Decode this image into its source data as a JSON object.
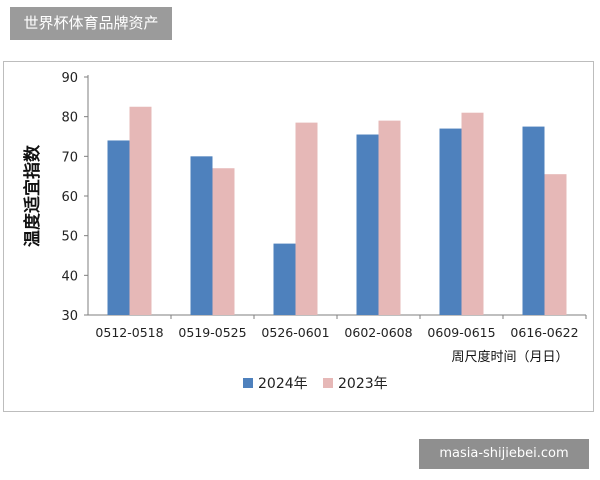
{
  "header": {
    "badge": "世界杯体育品牌资产"
  },
  "footer": {
    "watermark": "masia-shijiebei.com"
  },
  "chart_data": {
    "type": "bar",
    "title": "",
    "xlabel": "周尺度时间（月日）",
    "ylabel": "温度适宜指数",
    "ylim": [
      30,
      90
    ],
    "yticks": [
      30,
      40,
      50,
      60,
      70,
      80,
      90
    ],
    "grid": false,
    "legend_position": "bottom-center",
    "categories": [
      "0512-0518",
      "0519-0525",
      "0526-0601",
      "0602-0608",
      "0609-0615",
      "0616-0622"
    ],
    "series": [
      {
        "name": "2024年",
        "color": "#4e81bd",
        "values": [
          74,
          70,
          48,
          75.5,
          77,
          77.5
        ]
      },
      {
        "name": "2023年",
        "color": "#e6b8b7",
        "values": [
          82.5,
          67,
          78.5,
          79,
          81,
          65.5
        ]
      }
    ]
  }
}
